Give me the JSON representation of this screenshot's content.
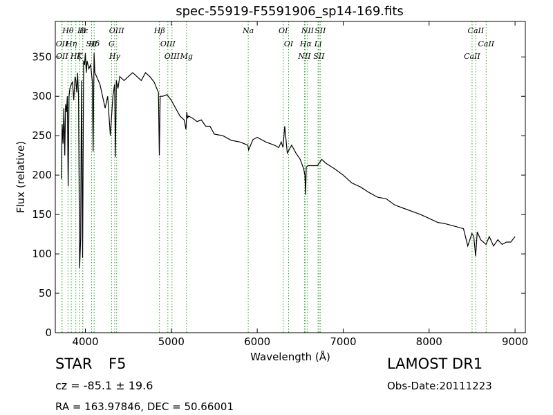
{
  "chart_data": {
    "type": "line",
    "title": "spec-55919-F5591906_sp14-169.fits",
    "xlabel": "Wavelength (Å)",
    "ylabel": "Flux (relative)",
    "xlim": [
      3650,
      9120
    ],
    "ylim": [
      0,
      395
    ],
    "xticks": [
      4000,
      5000,
      6000,
      7000,
      8000,
      9000
    ],
    "yticks": [
      0,
      50,
      100,
      150,
      200,
      250,
      300,
      350
    ],
    "grid": false,
    "series": [
      {
        "x": [
          3720,
          3730,
          3740,
          3750,
          3760,
          3770,
          3780,
          3790,
          3800,
          3810,
          3820,
          3835,
          3850,
          3865,
          3880,
          3890,
          3900,
          3910,
          3920,
          3933,
          3945,
          3955,
          3968,
          3980,
          3990,
          4000,
          4010,
          4020,
          4040,
          4060,
          4080,
          4090,
          4101,
          4110,
          4130,
          4150,
          4170,
          4200,
          4230,
          4260,
          4290,
          4320,
          4340,
          4350,
          4360,
          4380,
          4400,
          4450,
          4500,
          4550,
          4600,
          4650,
          4700,
          4750,
          4800,
          4830,
          4850,
          4861,
          4870,
          4900,
          4950,
          5000,
          5050,
          5100,
          5150,
          5170,
          5180,
          5190,
          5200,
          5250,
          5300,
          5350,
          5400,
          5450,
          5500,
          5600,
          5700,
          5800,
          5890,
          5900,
          5950,
          6000,
          6100,
          6200,
          6250,
          6280,
          6300,
          6320,
          6350,
          6400,
          6450,
          6500,
          6540,
          6555,
          6563,
          6570,
          6590,
          6650,
          6700,
          6750,
          6800,
          6900,
          7000,
          7100,
          7200,
          7300,
          7400,
          7500,
          7600,
          7700,
          7800,
          7900,
          8000,
          8100,
          8200,
          8300,
          8400,
          8450,
          8498,
          8520,
          8542,
          8560,
          8600,
          8662,
          8700,
          8750,
          8800,
          8850,
          8900,
          8950,
          9000
        ],
        "values": [
          195,
          265,
          240,
          285,
          225,
          290,
          280,
          300,
          186,
          300,
          310,
          315,
          318,
          295,
          325,
          320,
          305,
          330,
          300,
          82,
          120,
          320,
          95,
          345,
          340,
          355,
          330,
          345,
          335,
          340,
          320,
          230,
          355,
          330,
          325,
          320,
          315,
          300,
          285,
          300,
          250,
          300,
          315,
          223,
          320,
          310,
          325,
          320,
          325,
          330,
          325,
          320,
          330,
          325,
          318,
          310,
          305,
          225,
          300,
          300,
          302,
          295,
          285,
          275,
          270,
          258,
          280,
          272,
          275,
          272,
          268,
          270,
          262,
          262,
          252,
          250,
          244,
          242,
          238,
          232,
          245,
          248,
          242,
          238,
          235,
          242,
          235,
          262,
          228,
          238,
          228,
          220,
          208,
          200,
          175,
          210,
          212,
          212,
          212,
          220,
          215,
          208,
          200,
          190,
          185,
          178,
          172,
          170,
          162,
          158,
          154,
          150,
          145,
          140,
          138,
          135,
          132,
          110,
          126,
          122,
          97,
          128,
          118,
          112,
          122,
          110,
          118,
          112,
          115,
          115,
          122
        ]
      }
    ],
    "annotations": [
      {
        "label": "Hθ",
        "x": 3798
      },
      {
        "label": "Hη",
        "x": 3836
      },
      {
        "label": "Hζ",
        "x": 3889
      },
      {
        "label": "Hε",
        "x": 3970
      },
      {
        "label": "Hδ",
        "x": 4102
      },
      {
        "label": "Hγ",
        "x": 4341
      },
      {
        "label": "Hβ",
        "x": 4862
      },
      {
        "label": "Hα",
        "x": 6564
      },
      {
        "label": "K",
        "x": 3934
      },
      {
        "label": "H",
        "x": 3969
      },
      {
        "label": "G",
        "x": 4305
      },
      {
        "label": "Mg",
        "x": 5177
      },
      {
        "label": "Na",
        "x": 5895
      },
      {
        "label": "OII",
        "x": 3727
      },
      {
        "label": "OII",
        "x": 3729
      },
      {
        "label": "OIII",
        "x": 4364
      },
      {
        "label": "OIII",
        "x": 4960
      },
      {
        "label": "OIII",
        "x": 5008
      },
      {
        "label": "OI",
        "x": 6302
      },
      {
        "label": "OI",
        "x": 6365
      },
      {
        "label": "NII",
        "x": 6549
      },
      {
        "label": "NII",
        "x": 6585
      },
      {
        "label": "SII",
        "x": 4072
      },
      {
        "label": "SII",
        "x": 6718
      },
      {
        "label": "SII",
        "x": 6733
      },
      {
        "label": "Li",
        "x": 6708
      },
      {
        "label": "CaII",
        "x": 8500
      },
      {
        "label": "CaII",
        "x": 8544
      },
      {
        "label": "CaII",
        "x": 8664
      }
    ],
    "line_color": "#000000",
    "marker_color": "#2ca02c"
  },
  "info": {
    "object_class": "STAR",
    "subclass": "F5",
    "redshift": "cz = -85.1 ± 19.6",
    "coords": "RA = 163.97846, DEC = 50.66001",
    "survey": "LAMOST DR1",
    "obs_date": "Obs-Date:20111223"
  }
}
